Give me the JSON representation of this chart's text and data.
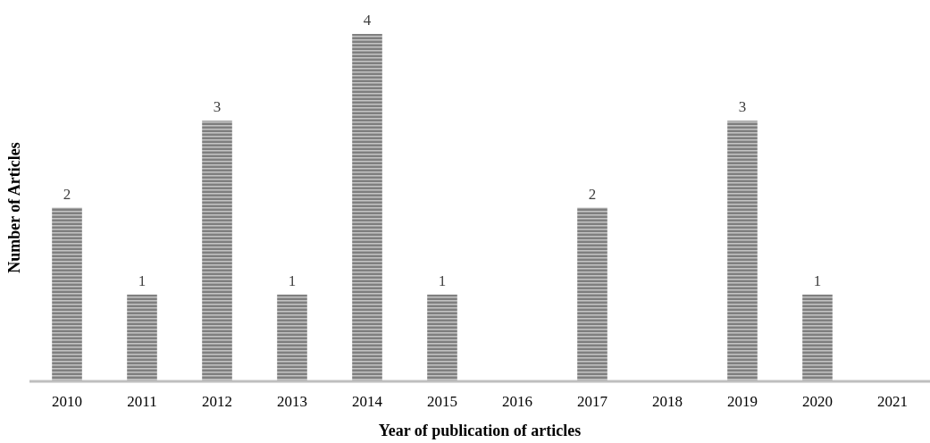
{
  "chart_data": {
    "type": "bar",
    "xlabel": "Year of publication of articles",
    "ylabel": "Number of Articles",
    "categories": [
      "2010",
      "2011",
      "2012",
      "2013",
      "2014",
      "2015",
      "2016",
      "2017",
      "2018",
      "2019",
      "2020",
      "2021"
    ],
    "values": [
      2,
      1,
      3,
      1,
      4,
      1,
      null,
      2,
      null,
      3,
      1,
      null
    ],
    "color": "#7f7f7f",
    "data_labels": true
  }
}
